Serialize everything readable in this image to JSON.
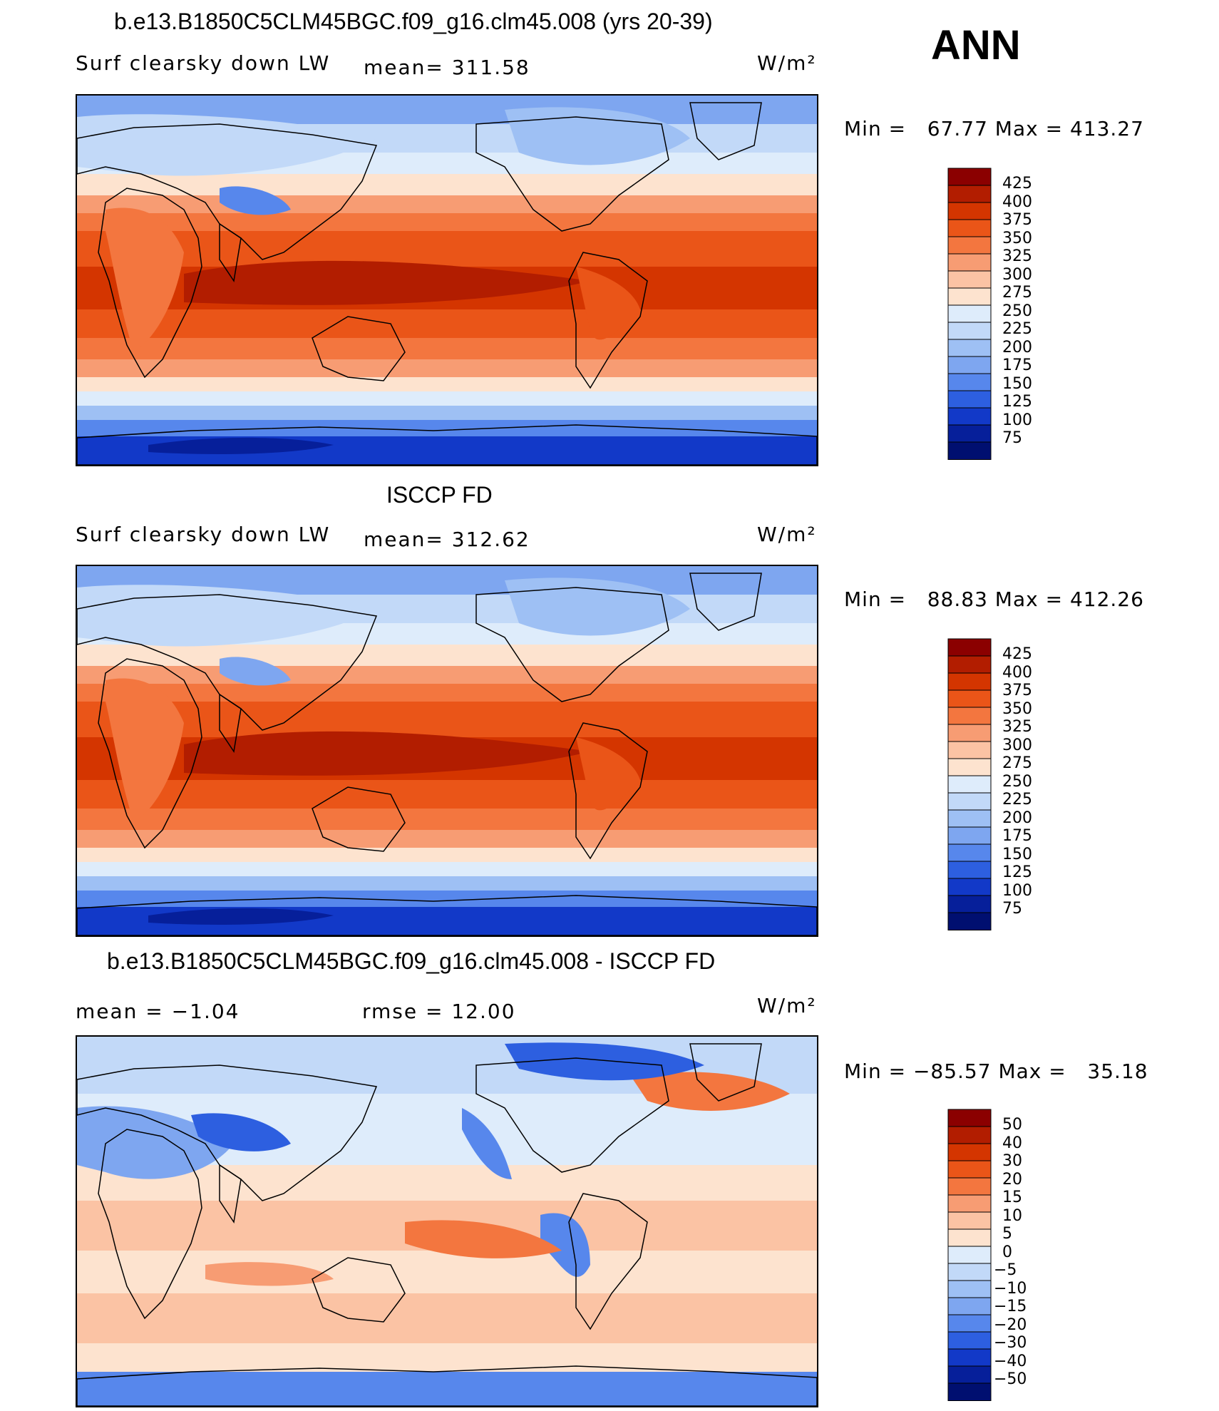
{
  "season": "ANN",
  "panels": [
    {
      "title": "b.e13.B1850C5CLM45BGC.f09_g16.clm45.008 (yrs 20-39)",
      "left": "Surf clearsky down LW",
      "mid": "mean= 311.58",
      "units": "W/m²",
      "minmax": "Min =   67.77 Max = 413.27",
      "colorbar": [
        "425",
        "400",
        "375",
        "350",
        "325",
        "300",
        "275",
        "250",
        "225",
        "200",
        "175",
        "150",
        "125",
        "100",
        "75"
      ]
    },
    {
      "title": "ISCCP FD",
      "left": "Surf clearsky down LW",
      "mid": "mean= 312.62",
      "units": "W/m²",
      "minmax": "Min =   88.83 Max = 412.26",
      "colorbar": [
        "425",
        "400",
        "375",
        "350",
        "325",
        "300",
        "275",
        "250",
        "225",
        "200",
        "175",
        "150",
        "125",
        "100",
        "75"
      ]
    },
    {
      "title": "b.e13.B1850C5CLM45BGC.f09_g16.clm45.008 - ISCCP FD",
      "left": "mean =   −1.04",
      "mid": "rmse =   12.00",
      "units": "W/m²",
      "minmax": "Min = −85.57 Max =   35.18",
      "colorbar": [
        "50",
        "40",
        "30",
        "20",
        "15",
        "10",
        "5",
        "0",
        "−5",
        "−10",
        "−15",
        "−20",
        "−30",
        "−40",
        "−50"
      ]
    }
  ],
  "palette": [
    "#8b0000",
    "#b21d00",
    "#d43500",
    "#ea5518",
    "#f3763f",
    "#f79c73",
    "#fbc3a4",
    "#fde3cf",
    "#deecfb",
    "#c2d9f8",
    "#9ec0f4",
    "#7ea6f0",
    "#5787ec",
    "#2d5fe0",
    "#1239c8",
    "#061f9a",
    "#000f70"
  ],
  "chart_data": [
    {
      "type": "heatmap",
      "title": "b.e13.B1850C5CLM45BGC.f09_g16.clm45.008 (yrs 20-39)",
      "variable": "Surf clearsky down LW",
      "units": "W/m2",
      "mean": 311.58,
      "min": 67.77,
      "max": 413.27,
      "levels": [
        75,
        100,
        125,
        150,
        175,
        200,
        225,
        250,
        275,
        300,
        325,
        350,
        375,
        400,
        425
      ]
    },
    {
      "type": "heatmap",
      "title": "ISCCP FD",
      "variable": "Surf clearsky down LW",
      "units": "W/m2",
      "mean": 312.62,
      "min": 88.83,
      "max": 412.26,
      "levels": [
        75,
        100,
        125,
        150,
        175,
        200,
        225,
        250,
        275,
        300,
        325,
        350,
        375,
        400,
        425
      ]
    },
    {
      "type": "heatmap",
      "title": "b.e13.B1850C5CLM45BGC.f09_g16.clm45.008 - ISCCP FD",
      "units": "W/m2",
      "mean": -1.04,
      "rmse": 12.0,
      "min": -85.57,
      "max": 35.18,
      "levels": [
        -50,
        -40,
        -30,
        -20,
        -15,
        -10,
        -5,
        0,
        5,
        10,
        15,
        20,
        30,
        40,
        50
      ]
    }
  ]
}
